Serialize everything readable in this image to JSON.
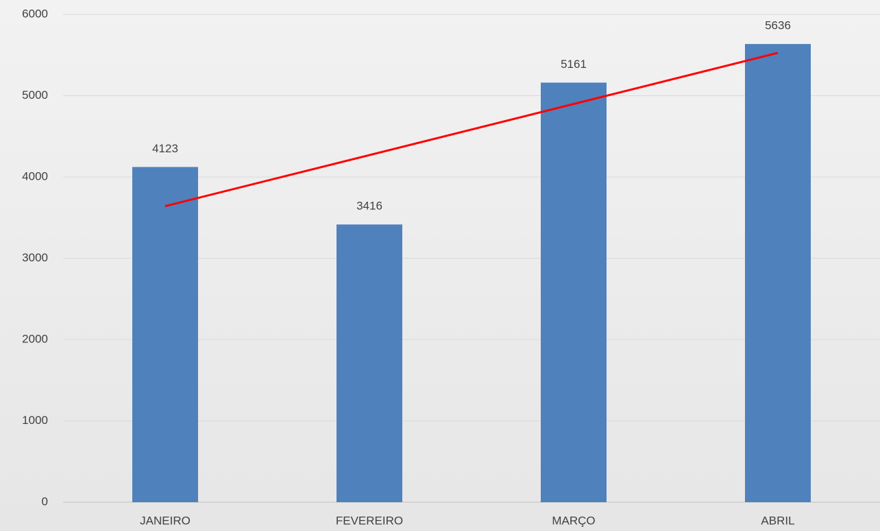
{
  "chart_data": {
    "type": "bar",
    "categories": [
      "JANEIRO",
      "FEVEREIRO",
      "MARÇO",
      "ABRIL"
    ],
    "values": [
      4123,
      3416,
      5161,
      5636
    ],
    "color": "#4f81bd",
    "ylim": [
      0,
      6000
    ],
    "yticks": [
      0,
      1000,
      2000,
      3000,
      4000,
      5000,
      6000
    ],
    "grid": true,
    "data_labels": true,
    "trendline": true,
    "trendline_color": "#ff0000"
  }
}
